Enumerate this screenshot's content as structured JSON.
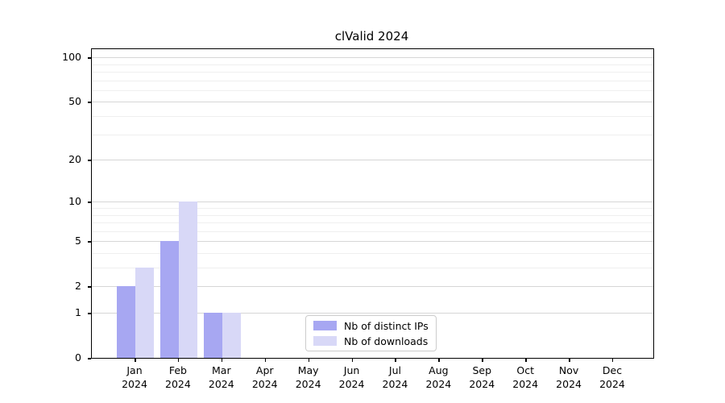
{
  "chart_data": {
    "type": "bar",
    "title": "clValid 2024",
    "categories": [
      "Jan 2024",
      "Feb 2024",
      "Mar 2024",
      "Apr 2024",
      "May 2024",
      "Jun 2024",
      "Jul 2024",
      "Aug 2024",
      "Sep 2024",
      "Oct 2024",
      "Nov 2024",
      "Dec 2024"
    ],
    "x_tick_months": [
      "Jan",
      "Feb",
      "Mar",
      "Apr",
      "May",
      "Jun",
      "Jul",
      "Aug",
      "Sep",
      "Oct",
      "Nov",
      "Dec"
    ],
    "x_tick_year": "2024",
    "series": [
      {
        "name": "Nb of distinct IPs",
        "color": "#a7a7f2",
        "values": [
          2,
          5,
          1,
          0,
          0,
          0,
          0,
          0,
          0,
          0,
          0,
          0
        ]
      },
      {
        "name": "Nb of downloads",
        "color": "#d8d8f7",
        "values": [
          3,
          10,
          1,
          0,
          0,
          0,
          0,
          0,
          0,
          0,
          0,
          0
        ]
      }
    ],
    "xlabel": "",
    "ylabel": "",
    "yscale": "log1p",
    "y_major_ticks": [
      0,
      1,
      2,
      5,
      10,
      20,
      50,
      100
    ],
    "y_minor_gridlines": [
      3,
      4,
      6,
      7,
      8,
      9,
      30,
      40,
      60,
      70,
      80,
      90
    ],
    "ylim": [
      0,
      113
    ],
    "grid": "horizontal-only",
    "legend_position": "lower-center-inside",
    "background_color": "#ffffff",
    "spine_color": "#000000",
    "major_grid_color": "#d6d6d6",
    "minor_grid_color": "#efefef"
  }
}
